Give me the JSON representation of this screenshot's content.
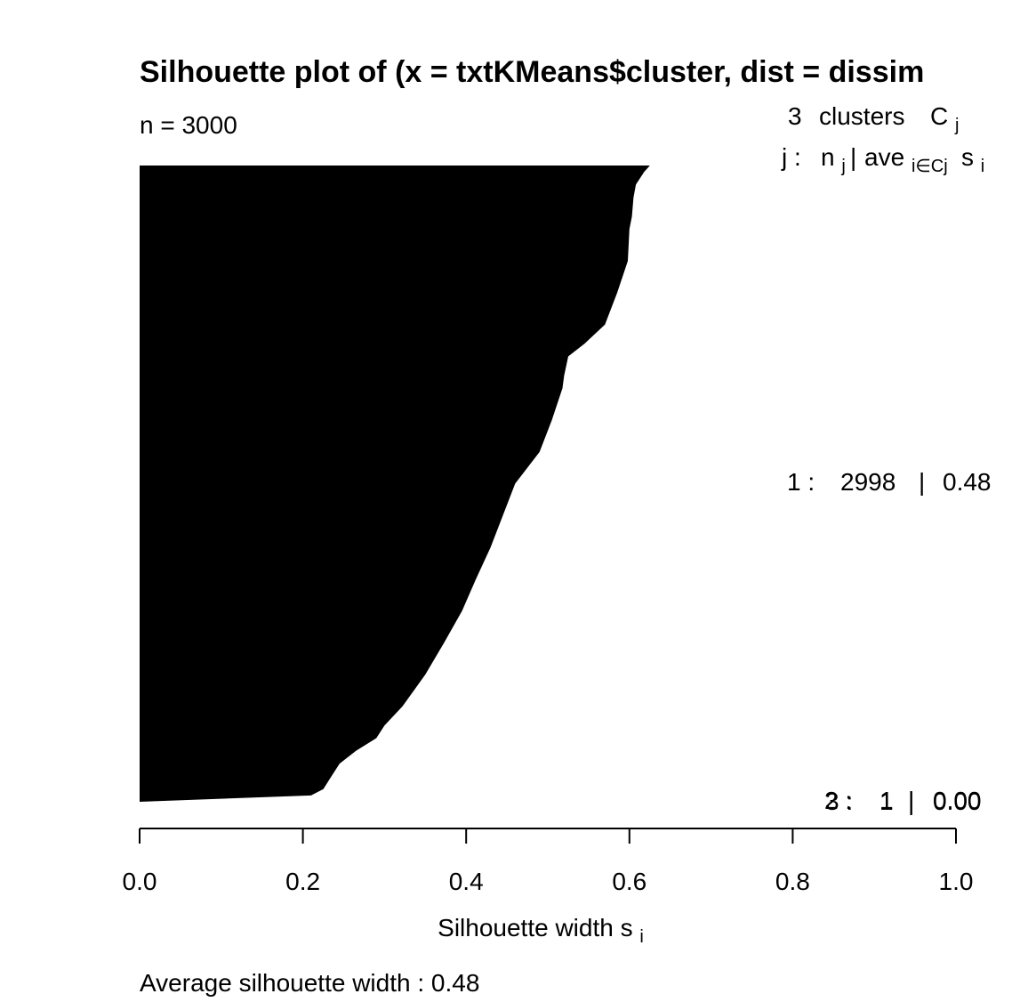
{
  "chart_data": {
    "type": "silhouette",
    "title": "Silhouette plot of (x = txtKMeans$cluster, dist = dissim",
    "subtitle": "n = 3000",
    "xlabel": "Silhouette width s",
    "xlabel_sub": "i",
    "footer": "Average silhouette width :  0.48",
    "xlim": [
      0,
      1
    ],
    "xticks": [
      0,
      0.2,
      0.4,
      0.6,
      0.8,
      1
    ],
    "xtick_labels": [
      "0.0",
      "0.2",
      "0.4",
      "0.6",
      "0.8",
      "1.0"
    ],
    "legend": {
      "header1": {
        "n": "3",
        "word": "clusters",
        "sym": "C",
        "sym_sub": "j"
      },
      "header2": {
        "lead": "j :",
        "n": "n",
        "n_sub": "j",
        "sep": "|",
        "ave": "ave",
        "ave_sub": "i∈Cj",
        "s": "s",
        "s_sub": "i"
      }
    },
    "clusters": [
      {
        "id": "1",
        "size": 2998,
        "avg_width": "0.48",
        "label_cluster": "1 :",
        "label_size": "2998",
        "label_sep": "|",
        "label_avg": "0.48"
      },
      {
        "id": "2",
        "size": 1,
        "avg_width": "0.00",
        "label_cluster": "2 :",
        "label_size": "1",
        "label_sep": "|",
        "label_avg": "0.00"
      },
      {
        "id": "3",
        "size": 1,
        "avg_width": "0.00",
        "label_cluster": "3 :",
        "label_size": "1",
        "label_sep": "|",
        "label_avg": "0.00"
      }
    ],
    "widths_profile": {
      "rank_fraction": [
        0,
        0.01,
        0.03,
        0.05,
        0.08,
        0.1,
        0.15,
        0.2,
        0.25,
        0.28,
        0.3,
        0.33,
        0.35,
        0.4,
        0.45,
        0.5,
        0.55,
        0.6,
        0.65,
        0.7,
        0.75,
        0.8,
        0.85,
        0.88,
        0.9,
        0.92,
        0.94,
        0.96,
        0.98,
        0.99,
        1.0
      ],
      "width": [
        0.625,
        0.618,
        0.608,
        0.605,
        0.603,
        0.6,
        0.598,
        0.585,
        0.57,
        0.545,
        0.525,
        0.52,
        0.518,
        0.505,
        0.49,
        0.46,
        0.445,
        0.43,
        0.412,
        0.395,
        0.373,
        0.35,
        0.322,
        0.3,
        0.29,
        0.265,
        0.245,
        0.235,
        0.225,
        0.21,
        0.0
      ]
    }
  }
}
